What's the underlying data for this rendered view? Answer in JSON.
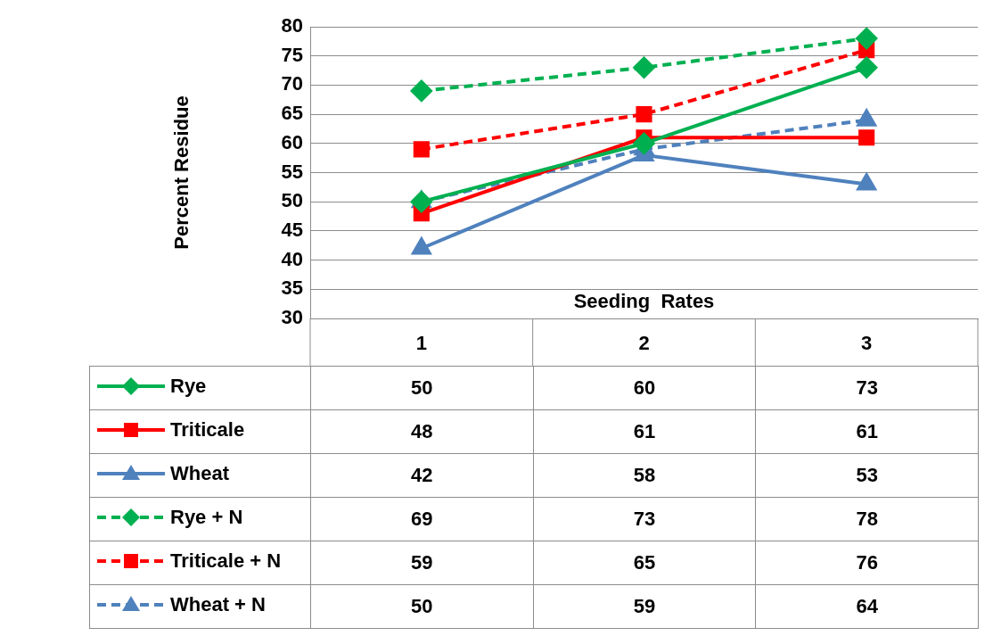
{
  "chart_data": {
    "type": "line",
    "xlabel": "Seeding  Rates",
    "ylabel": "Percent Residue",
    "categories": [
      "1",
      "2",
      "3"
    ],
    "series": [
      {
        "name": "Rye",
        "color": "#00b050",
        "values": [
          50,
          60,
          73
        ],
        "marker": "diamond",
        "line_style": "solid"
      },
      {
        "name": "Triticale",
        "color": "#ff0000",
        "values": [
          48,
          61,
          61
        ],
        "marker": "square",
        "line_style": "solid"
      },
      {
        "name": "Wheat",
        "color": "#4f81bd",
        "values": [
          42,
          58,
          53
        ],
        "marker": "triangle",
        "line_style": "solid"
      },
      {
        "name": "Rye + N",
        "color": "#00b050",
        "values": [
          69,
          73,
          78
        ],
        "marker": "diamond",
        "line_style": "dashed"
      },
      {
        "name": "Triticale + N",
        "color": "#ff0000",
        "values": [
          59,
          65,
          76
        ],
        "marker": "square",
        "line_style": "dashed"
      },
      {
        "name": "Wheat + N",
        "color": "#4f81bd",
        "values": [
          50,
          59,
          64
        ],
        "marker": "triangle",
        "line_style": "dashed"
      }
    ],
    "ylim": [
      30,
      80
    ],
    "yticks": [
      30,
      35,
      40,
      45,
      50,
      55,
      60,
      65,
      70,
      75,
      80
    ],
    "grid": "y",
    "legend": "bottom",
    "data_labels": true
  }
}
